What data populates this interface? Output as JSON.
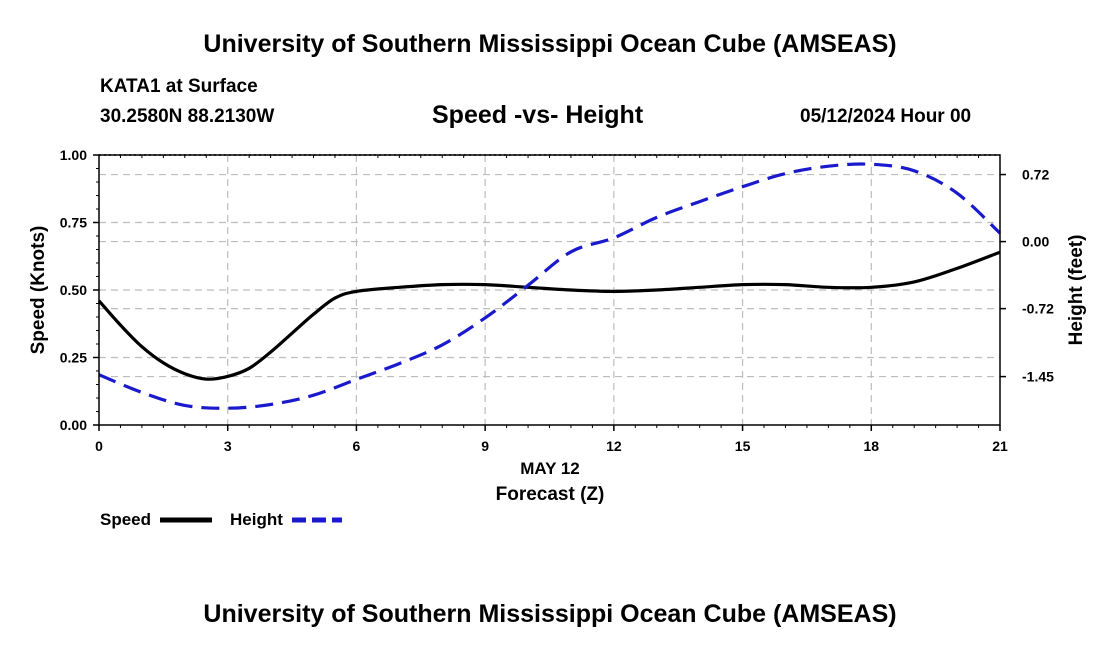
{
  "header": {
    "top_title": "University of Southern Mississippi Ocean Cube (AMSEAS)",
    "station": "KATA1 at Surface",
    "coords": "30.2580N  88.2130W",
    "datetime": "05/12/2024 Hour 00",
    "bottom_title": "University of Southern Mississippi Ocean Cube (AMSEAS)"
  },
  "chart_data": {
    "type": "line",
    "title": "Speed -vs- Height",
    "xlabel_date": "MAY 12",
    "xlabel": "Forecast (Z)",
    "ylabel_left": "Speed (Knots)",
    "ylabel_right": "Height (feet)",
    "x_ticks": [
      "0",
      "3",
      "6",
      "9",
      "12",
      "15",
      "18",
      "21"
    ],
    "x_tick_values": [
      0,
      3,
      6,
      9,
      12,
      15,
      18,
      21
    ],
    "xlim": [
      0,
      21
    ],
    "y_left_ticks": [
      "0.00",
      "0.25",
      "0.50",
      "0.75",
      "1.00"
    ],
    "y_left_tick_values": [
      0,
      0.25,
      0.5,
      0.75,
      1.0
    ],
    "ylim_left": [
      0,
      1.0
    ],
    "y_right_ticks": [
      "0.72",
      "0.00",
      "-0.72",
      "-1.45"
    ],
    "y_right_tick_values": [
      0.72,
      0.0,
      -0.72,
      -1.45
    ],
    "ylim_right": [
      -1.97,
      0.93
    ],
    "grid": true,
    "legend": "bottom-left",
    "series": [
      {
        "name": "Speed",
        "axis": "left",
        "color": "#000000",
        "style": "solid",
        "x": [
          0,
          0.5,
          1,
          1.5,
          2,
          2.5,
          3,
          3.5,
          4,
          4.5,
          5,
          5.5,
          6,
          7,
          8,
          9,
          10,
          11,
          12,
          13,
          14,
          15,
          16,
          17,
          18,
          19,
          20,
          21
        ],
        "values": [
          0.46,
          0.37,
          0.29,
          0.23,
          0.19,
          0.17,
          0.18,
          0.21,
          0.27,
          0.34,
          0.41,
          0.47,
          0.495,
          0.51,
          0.52,
          0.52,
          0.51,
          0.5,
          0.495,
          0.5,
          0.51,
          0.52,
          0.52,
          0.51,
          0.51,
          0.53,
          0.58,
          0.64
        ]
      },
      {
        "name": "Height",
        "axis": "right",
        "color": "#1a1acc",
        "style": "dashed",
        "x": [
          0,
          1,
          2,
          3,
          4,
          5,
          6,
          7,
          8,
          9,
          10,
          11,
          12,
          13,
          14,
          15,
          16,
          17,
          18,
          19,
          20,
          21
        ],
        "values": [
          -1.43,
          -1.62,
          -1.76,
          -1.79,
          -1.75,
          -1.65,
          -1.48,
          -1.31,
          -1.11,
          -0.82,
          -0.47,
          -0.11,
          0.04,
          0.26,
          0.43,
          0.59,
          0.73,
          0.81,
          0.83,
          0.76,
          0.52,
          0.09
        ]
      }
    ]
  }
}
